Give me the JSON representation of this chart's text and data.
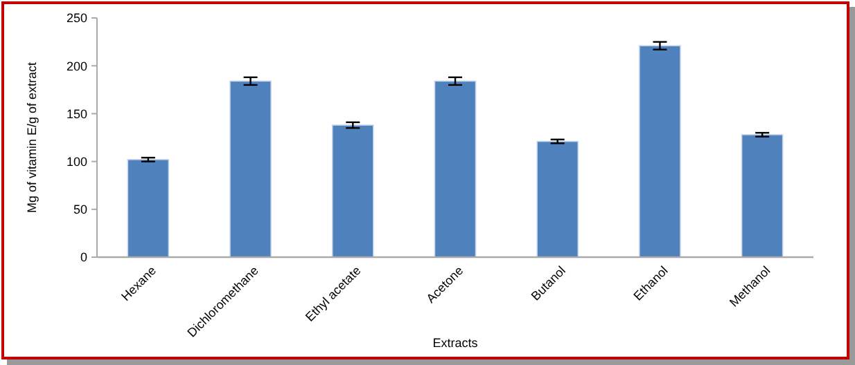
{
  "chart_data": {
    "type": "bar",
    "xlabel": "Extracts",
    "ylabel": "Mg of vitamin E/g of extract",
    "categories": [
      "Hexane",
      "Dichloromethane",
      "Ethyl acetate",
      "Acetone",
      "Butanol",
      "Ethanol",
      "Methanol"
    ],
    "values": [
      102,
      184,
      138,
      184,
      121,
      221,
      128
    ],
    "errors": [
      2,
      4,
      3,
      4,
      2,
      4,
      2
    ],
    "color": "#4f81bd",
    "ylim": [
      0,
      250
    ],
    "yticks": [
      0,
      50,
      100,
      150,
      200,
      250
    ],
    "grid": false
  }
}
